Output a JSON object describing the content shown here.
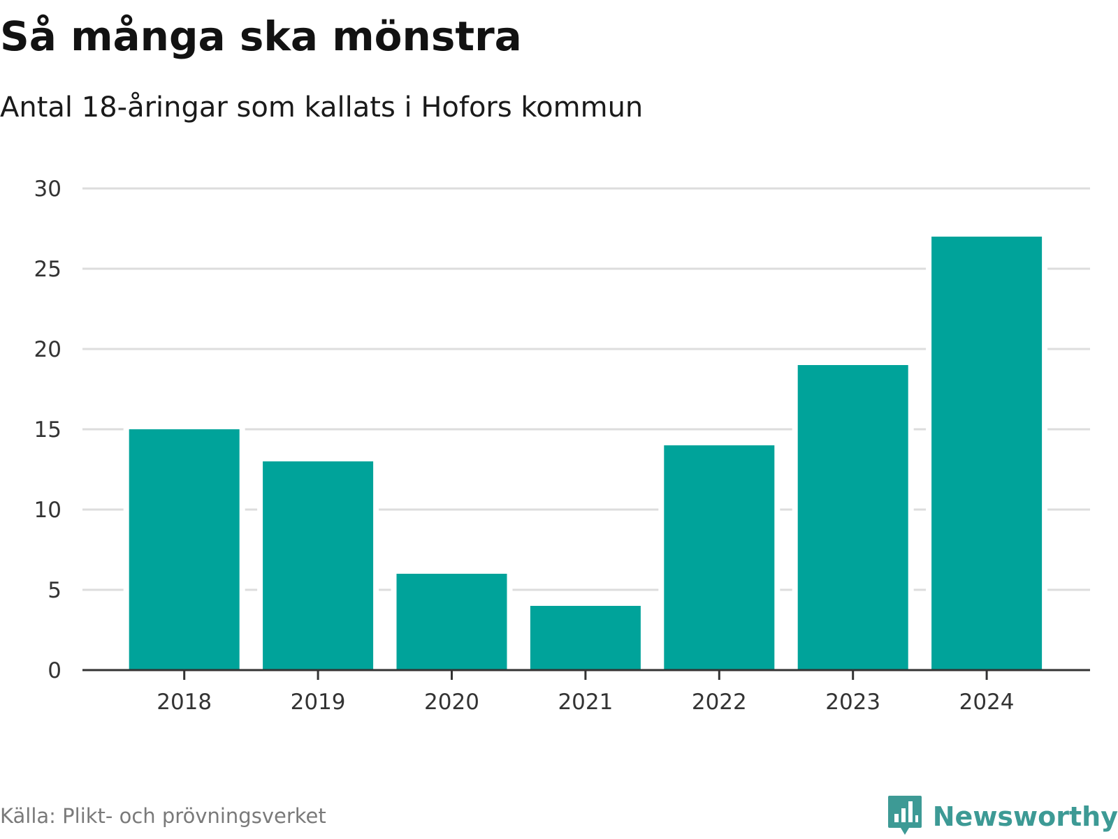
{
  "header": {
    "title": "Så många ska mönstra",
    "subtitle": "Antal 18-åringar som kallats i Hofors kommun"
  },
  "footer": {
    "source": "Källa: Plikt- och prövningsverket",
    "brand": "Newsworthy",
    "brand_icon": "bar-chart-speech-bubble-icon",
    "brand_color": "#3d9a95"
  },
  "chart_data": {
    "type": "bar",
    "title": "Så många ska mönstra",
    "subtitle": "Antal 18-åringar som kallats i Hofors kommun",
    "xlabel": "",
    "ylabel": "",
    "categories": [
      "2018",
      "2019",
      "2020",
      "2021",
      "2022",
      "2023",
      "2024"
    ],
    "values": [
      15,
      13,
      6,
      4,
      14,
      19,
      27
    ],
    "ylim": [
      0,
      30
    ],
    "yticks": [
      0,
      5,
      10,
      15,
      20,
      25,
      30
    ],
    "grid": true,
    "legend": "none",
    "bar_color": "#00a39a",
    "grid_color": "#dddddd",
    "axis_color": "#333333"
  }
}
